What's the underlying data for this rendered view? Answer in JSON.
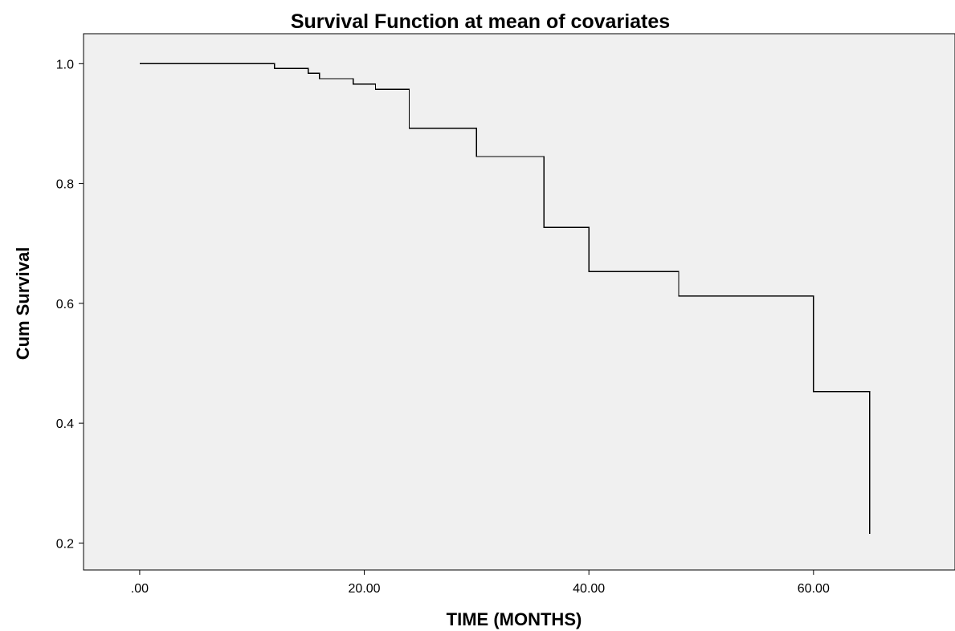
{
  "chart_data": {
    "type": "line",
    "title": "Survival Function at mean of covariates",
    "xlabel": "TIME (MONTHS)",
    "ylabel": "Cum Survival",
    "xlim": [
      -5,
      72.6
    ],
    "ylim": [
      0.155,
      1.05
    ],
    "x_ticks": [
      0,
      20,
      40,
      60
    ],
    "x_tick_labels": [
      ".00",
      "20.00",
      "40.00",
      "60.00"
    ],
    "y_ticks": [
      0.2,
      0.4,
      0.6,
      0.8,
      1.0
    ],
    "y_tick_labels": [
      "0.2",
      "0.4",
      "0.6",
      "0.8",
      "1.0"
    ],
    "grid": false,
    "legend": "none",
    "colors": {
      "plot_background": "#f0f0f0",
      "line": "#000000",
      "frame": "#000000"
    },
    "series": [
      {
        "step": "post",
        "x": [
          0,
          12,
          15,
          16,
          19,
          21,
          24,
          30,
          36,
          40,
          48,
          60,
          65
        ],
        "y": [
          1.0,
          0.992,
          0.984,
          0.975,
          0.966,
          0.957,
          0.892,
          0.845,
          0.727,
          0.653,
          0.612,
          0.453,
          0.215
        ]
      }
    ]
  }
}
